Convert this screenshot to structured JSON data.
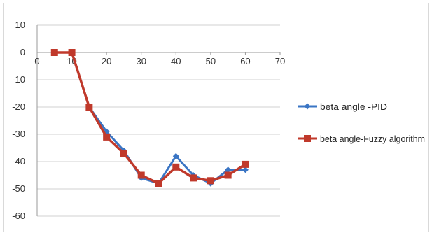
{
  "chart_data": {
    "type": "line",
    "title": "",
    "xlabel": "",
    "ylabel": "",
    "xlim": [
      0,
      70
    ],
    "ylim": [
      -60,
      10
    ],
    "x_ticks": [
      0,
      10,
      20,
      30,
      40,
      50,
      60,
      70
    ],
    "y_ticks": [
      10,
      0,
      -10,
      -20,
      -30,
      -40,
      -50,
      -60
    ],
    "grid": "horizontal",
    "legend_position": "right",
    "series": [
      {
        "name": "beta angle -PID",
        "color": "#3a75c4",
        "marker": "diamond",
        "x": [
          5,
          10,
          15,
          20,
          25,
          30,
          35,
          40,
          45,
          50,
          55,
          60
        ],
        "y": [
          0,
          0,
          -20,
          -29,
          -36,
          -46,
          -48,
          -38,
          -45,
          -48,
          -43,
          -43
        ]
      },
      {
        "name": "beta angle-Fuzzy algorithm",
        "color": "#c0392b",
        "marker": "square",
        "x": [
          5,
          10,
          15,
          20,
          25,
          30,
          35,
          40,
          45,
          50,
          55,
          60
        ],
        "y": [
          0,
          0,
          -20,
          -31,
          -37,
          -45,
          -48,
          -42,
          -46,
          -47,
          -45,
          -41
        ]
      }
    ]
  }
}
